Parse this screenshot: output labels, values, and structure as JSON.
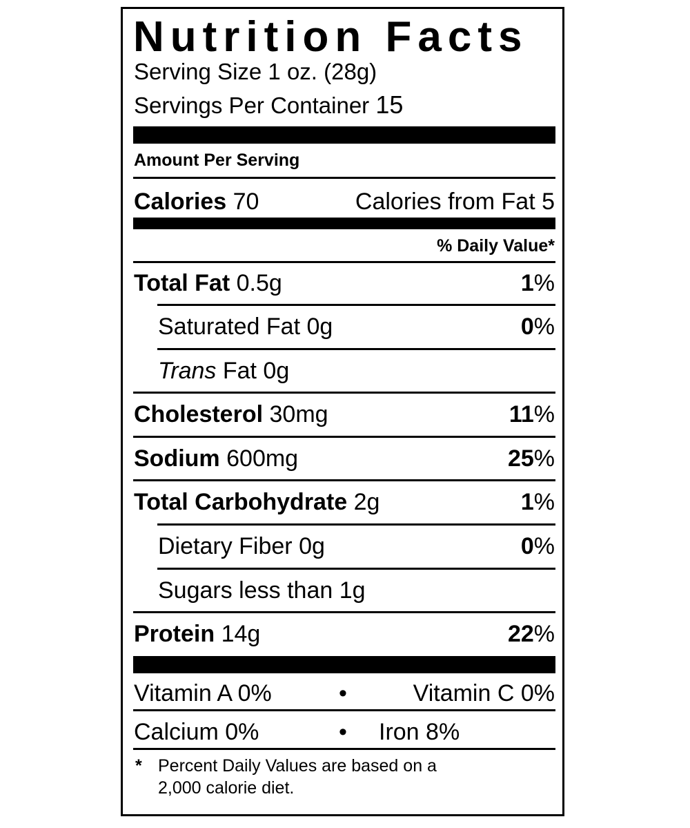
{
  "label": {
    "title": "Nutrition Facts",
    "serving_size": "Serving Size 1 oz. (28g)",
    "servings_per_container_label": "Servings Per Container",
    "servings_per_container_value": "15",
    "amount_per_serving": "Amount Per Serving",
    "calories_label": "Calories",
    "calories_value": "70",
    "calories_from_fat": "Calories from Fat 5",
    "daily_value_header": "% Daily Value*",
    "nutrients": [
      {
        "name": "Total Fat",
        "amount": "0.5g",
        "dv_num": "1",
        "dv_sym": "%"
      },
      {
        "name": "Saturated Fat",
        "amount": "0g",
        "dv_num": "0",
        "dv_sym": "%"
      },
      {
        "name_italic": "Trans",
        "name": "Fat",
        "amount": "0g"
      },
      {
        "name": "Cholesterol",
        "amount": "30mg",
        "dv_num": "11",
        "dv_sym": "%"
      },
      {
        "name": "Sodium",
        "amount": "600mg",
        "dv_num": "25",
        "dv_sym": "%"
      },
      {
        "name": "Total Carbohydrate",
        "amount": "2g",
        "dv_num": "1",
        "dv_sym": "%"
      },
      {
        "name": "Dietary Fiber",
        "amount": "0g",
        "dv_num": "0",
        "dv_sym": "%"
      },
      {
        "name": "Sugars less than",
        "amount": "1g"
      },
      {
        "name": "Protein",
        "amount": "14g",
        "dv_num": "22",
        "dv_sym": "%"
      }
    ],
    "vitamins": {
      "vitamin_a": "Vitamin A 0%",
      "vitamin_c": "Vitamin C 0%",
      "calcium": "Calcium 0%",
      "iron": "Iron 8%",
      "bullet": "•"
    },
    "footnote_star": "*",
    "footnote_line1": "Percent Daily Values are based on a",
    "footnote_line2": "2,000 calorie diet."
  }
}
